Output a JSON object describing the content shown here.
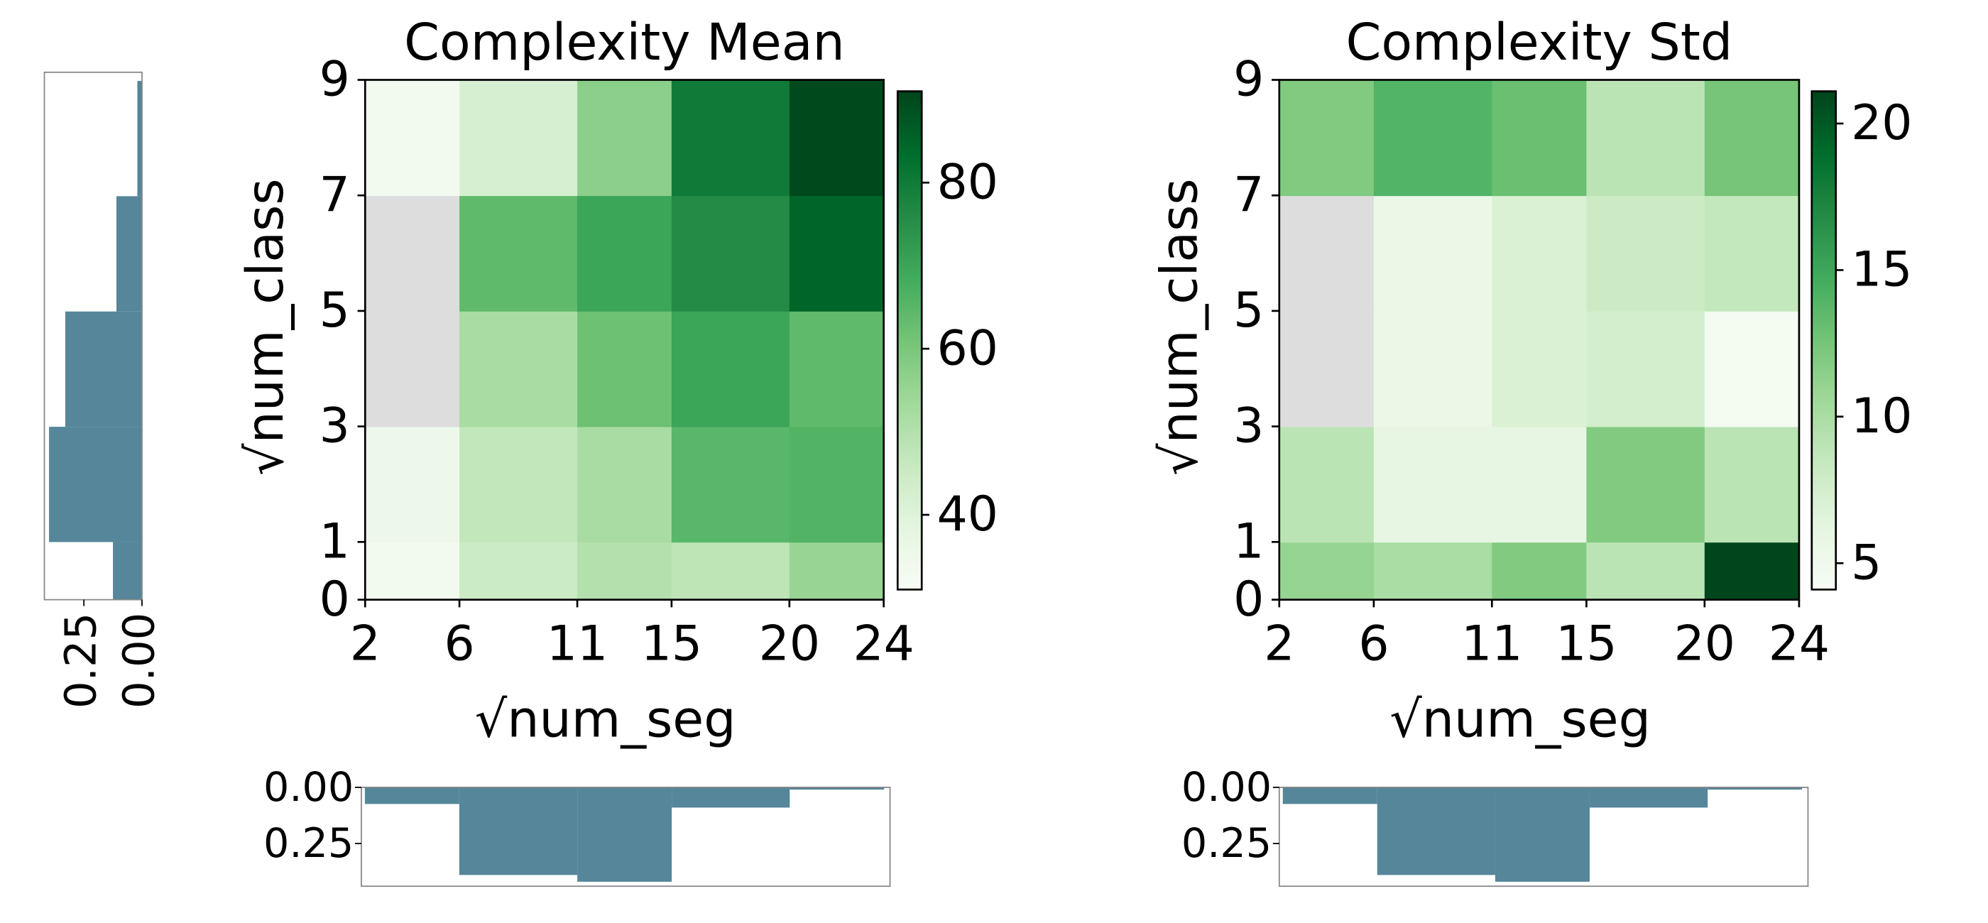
{
  "chart_data": [
    {
      "type": "heatmap",
      "title": "Complexity Mean",
      "x_label": "√num_seg",
      "y_label": "√num_class",
      "colormap": "Greens",
      "missing_color": "#dddddd",
      "xticks": [
        2,
        6,
        11,
        15,
        20,
        24
      ],
      "yticks": [
        0,
        1,
        3,
        5,
        7,
        9
      ],
      "values": [
        [
          33,
          45,
          50,
          48,
          55
        ],
        [
          35,
          47,
          52,
          65,
          66
        ],
        [
          null,
          52,
          62,
          70,
          64
        ],
        [
          null,
          64,
          70,
          76,
          85
        ],
        [
          33,
          42,
          57,
          80,
          90
        ]
      ],
      "clim": [
        31,
        91
      ],
      "cticks": [
        40,
        60,
        80
      ]
    },
    {
      "type": "heatmap",
      "title": "Complexity Std",
      "x_label": "√num_seg",
      "y_label": "√num_class",
      "colormap": "Greens",
      "missing_color": "#dddddd",
      "xticks": [
        2,
        6,
        11,
        15,
        20,
        24
      ],
      "yticks": [
        0,
        1,
        3,
        5,
        7,
        9
      ],
      "values": [
        [
          11,
          10,
          12,
          9,
          21
        ],
        [
          9,
          6,
          6,
          12,
          9
        ],
        [
          null,
          5.5,
          7,
          7.5,
          4.5
        ],
        [
          null,
          5.5,
          7,
          8,
          8.5
        ],
        [
          12,
          14,
          13,
          9,
          12.5
        ]
      ],
      "clim": [
        4.1,
        21.1
      ],
      "cticks": [
        5,
        10,
        15,
        20
      ]
    },
    {
      "type": "histogram",
      "orientation": "horizontal",
      "color": "#55869a",
      "bins": [
        0,
        1,
        3,
        5,
        7,
        9
      ],
      "values": [
        0.125,
        0.4,
        0.33,
        0.11,
        0.02
      ],
      "xlim": [
        0.42,
        0
      ],
      "ylim": [
        0,
        9.15
      ],
      "xticks": [
        {
          "value": 0.25,
          "label": "0.25"
        },
        {
          "value": 0,
          "label": "0.00"
        }
      ]
    },
    {
      "type": "histogram",
      "orientation": "vertical",
      "color": "#55869a",
      "bins": [
        2,
        6,
        11,
        15,
        20,
        24
      ],
      "values": [
        0.074,
        0.39,
        0.42,
        0.09,
        0.01
      ],
      "xlim": [
        1.85,
        24.25
      ],
      "ylim": [
        0,
        0.44
      ],
      "yticks": [
        {
          "value": 0,
          "label": "0.00"
        },
        {
          "value": 0.25,
          "label": "0.25"
        }
      ]
    },
    {
      "type": "histogram",
      "orientation": "vertical",
      "color": "#55869a",
      "bins": [
        2,
        6,
        11,
        15,
        20,
        24
      ],
      "values": [
        0.074,
        0.39,
        0.42,
        0.09,
        0.01
      ],
      "xlim": [
        1.85,
        24.25
      ],
      "ylim": [
        0,
        0.44
      ],
      "yticks": [
        {
          "value": 0,
          "label": "0.00"
        },
        {
          "value": 0.25,
          "label": "0.25"
        }
      ]
    }
  ]
}
